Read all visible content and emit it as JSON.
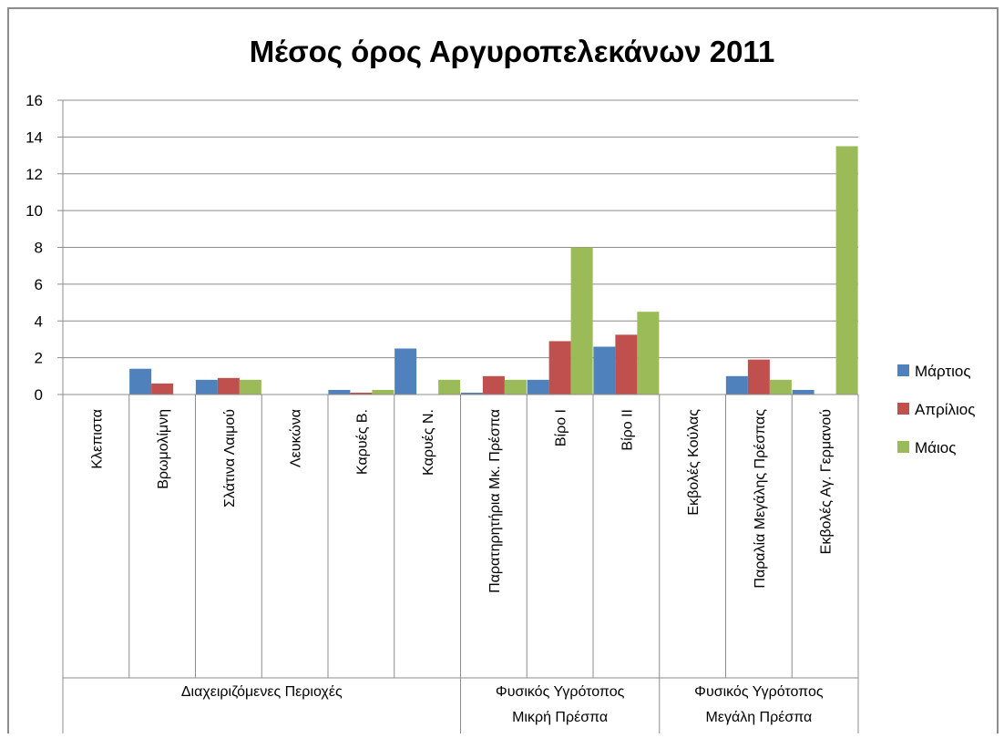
{
  "chart_data": {
    "type": "bar",
    "title": "Μέσος όρος Αργυροπελεκάνων 2011",
    "xlabel": "",
    "ylabel": "",
    "ylim": [
      0,
      16
    ],
    "yticks": [
      "0",
      "2",
      "4",
      "6",
      "8",
      "10",
      "12",
      "14",
      "16"
    ],
    "grid": true,
    "legend_position": "right",
    "categories": [
      "Κλεπιστα",
      "Βρωμολίμνη",
      "Σλάτινα Λαιμού",
      "Λευκώνα",
      "Καρυές Β.",
      "Καρυές Ν.",
      "Παρατηρητήρια Μκ. Πρέσπα",
      "Βίρο Ι",
      "Βίρο ΙΙ",
      "Εκβολές Κούλας",
      "Παραλία Μεγάλης Πρέσπας",
      "Εκβολές Αγ. Γερμανού"
    ],
    "groups": [
      {
        "label_lines": [
          "Διαχειριζόμενες Περιοχές"
        ],
        "count": 6
      },
      {
        "label_lines": [
          "Φυσικός Υγρότοπος",
          "Μικρή Πρέσπα"
        ],
        "count": 3
      },
      {
        "label_lines": [
          "Φυσικός Υγρότοπος",
          "Μεγάλη Πρέσπα"
        ],
        "count": 3
      }
    ],
    "series": [
      {
        "name": "Μάρτιος",
        "color": "#4f81bd",
        "values": [
          0,
          1.4,
          0.8,
          0,
          0.25,
          2.5,
          0.1,
          0.8,
          2.6,
          0,
          1.0,
          0.25
        ]
      },
      {
        "name": "Απρίλιος",
        "color": "#c0504d",
        "values": [
          0,
          0.6,
          0.9,
          0,
          0.1,
          0,
          1.0,
          2.9,
          3.25,
          0,
          1.9,
          0
        ]
      },
      {
        "name": "Μάιος",
        "color": "#9bbb59",
        "values": [
          0,
          0,
          0.8,
          0,
          0.25,
          0.8,
          0.8,
          8.0,
          4.5,
          0,
          0.8,
          13.5
        ]
      }
    ]
  }
}
